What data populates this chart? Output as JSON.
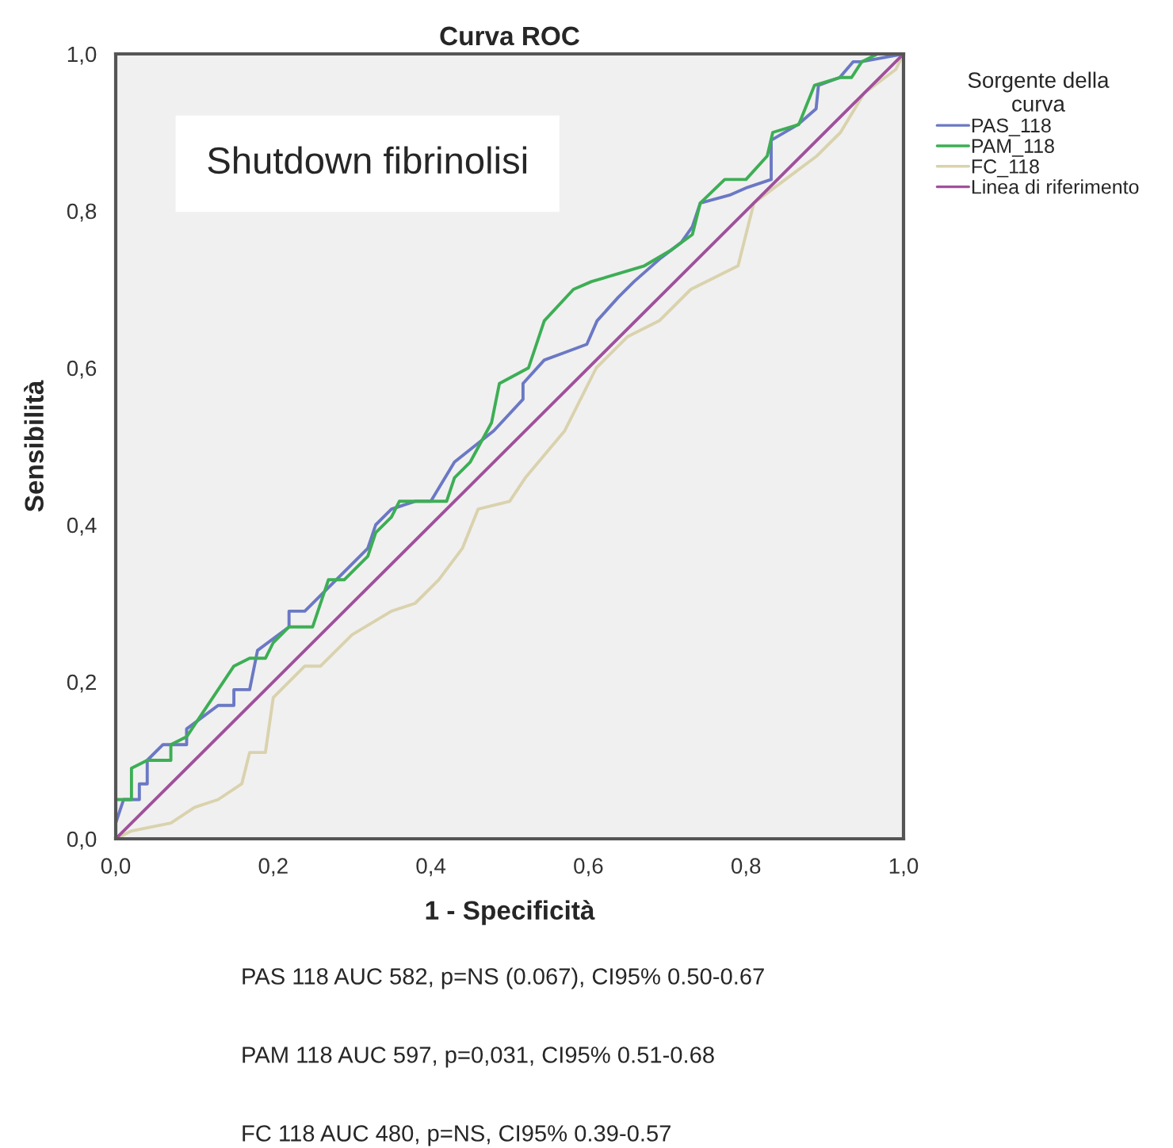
{
  "chart_data": {
    "type": "line",
    "title": "Curva ROC",
    "xlabel": "1 - Specificità",
    "ylabel": "Sensibilità",
    "legend_title": "Sorgente della\ncurva",
    "legend": "right",
    "xlim": [
      0,
      1
    ],
    "ylim": [
      0,
      1
    ],
    "xticks": [
      {
        "value": 0,
        "label": "0,0"
      },
      {
        "value": 0.2,
        "label": "0,2"
      },
      {
        "value": 0.4,
        "label": "0,4"
      },
      {
        "value": 0.6,
        "label": "0,6"
      },
      {
        "value": 0.8,
        "label": "0,8"
      },
      {
        "value": 1,
        "label": "1,0"
      }
    ],
    "yticks": [
      {
        "value": 0,
        "label": "0,0"
      },
      {
        "value": 0.2,
        "label": "0,2"
      },
      {
        "value": 0.4,
        "label": "0,4"
      },
      {
        "value": 0.6,
        "label": "0,6"
      },
      {
        "value": 0.8,
        "label": "0,8"
      },
      {
        "value": 1,
        "label": "1,0"
      }
    ],
    "grid": false,
    "series": [
      {
        "name": "PAS_118",
        "color": "#6b78c4",
        "x": [
          0,
          0,
          0.01,
          0.03,
          0.03,
          0.04,
          0.04,
          0.06,
          0.09,
          0.09,
          0.13,
          0.15,
          0.15,
          0.17,
          0.18,
          0.22,
          0.22,
          0.24,
          0.27,
          0.32,
          0.33,
          0.35,
          0.38,
          0.4,
          0.43,
          0.48,
          0.517,
          0.517,
          0.544,
          0.571,
          0.598,
          0.611,
          0.638,
          0.658,
          0.692,
          0.718,
          0.732,
          0.742,
          0.779,
          0.802,
          0.832,
          0.832,
          0.866,
          0.889,
          0.892,
          0.919,
          0.936,
          0.946,
          1
        ],
        "values": [
          0,
          0.02,
          0.05,
          0.05,
          0.07,
          0.07,
          0.1,
          0.12,
          0.12,
          0.14,
          0.17,
          0.17,
          0.19,
          0.19,
          0.24,
          0.27,
          0.29,
          0.29,
          0.32,
          0.37,
          0.4,
          0.42,
          0.43,
          0.43,
          0.48,
          0.52,
          0.56,
          0.58,
          0.61,
          0.62,
          0.63,
          0.66,
          0.69,
          0.71,
          0.74,
          0.76,
          0.78,
          0.81,
          0.82,
          0.83,
          0.84,
          0.89,
          0.91,
          0.93,
          0.96,
          0.97,
          0.99,
          0.99,
          1
        ]
      },
      {
        "name": "PAM_118",
        "color": "#3dae55",
        "x": [
          0,
          0,
          0.02,
          0.02,
          0.04,
          0.07,
          0.07,
          0.09,
          0.11,
          0.13,
          0.15,
          0.17,
          0.19,
          0.2,
          0.22,
          0.25,
          0.27,
          0.29,
          0.32,
          0.33,
          0.35,
          0.36,
          0.42,
          0.43,
          0.45,
          0.477,
          0.487,
          0.524,
          0.544,
          0.581,
          0.604,
          0.638,
          0.671,
          0.705,
          0.732,
          0.742,
          0.773,
          0.8,
          0.827,
          0.834,
          0.867,
          0.887,
          0.92,
          0.934,
          0.947,
          0.967,
          1
        ],
        "values": [
          0,
          0.05,
          0.05,
          0.09,
          0.1,
          0.1,
          0.12,
          0.13,
          0.16,
          0.19,
          0.22,
          0.23,
          0.23,
          0.25,
          0.27,
          0.27,
          0.33,
          0.33,
          0.36,
          0.39,
          0.41,
          0.43,
          0.43,
          0.46,
          0.48,
          0.53,
          0.58,
          0.6,
          0.66,
          0.7,
          0.71,
          0.72,
          0.73,
          0.75,
          0.77,
          0.81,
          0.84,
          0.84,
          0.87,
          0.9,
          0.91,
          0.96,
          0.97,
          0.97,
          0.99,
          1,
          1
        ]
      },
      {
        "name": "FC_118",
        "color": "#d9d2ad",
        "x": [
          0,
          0.02,
          0.07,
          0.1,
          0.13,
          0.16,
          0.17,
          0.19,
          0.2,
          0.24,
          0.26,
          0.3,
          0.35,
          0.38,
          0.41,
          0.44,
          0.46,
          0.5,
          0.52,
          0.57,
          0.59,
          0.61,
          0.65,
          0.69,
          0.73,
          0.79,
          0.81,
          0.85,
          0.89,
          0.92,
          0.95,
          0.99,
          1
        ],
        "values": [
          0,
          0.01,
          0.02,
          0.04,
          0.05,
          0.07,
          0.11,
          0.11,
          0.18,
          0.22,
          0.22,
          0.26,
          0.29,
          0.3,
          0.33,
          0.37,
          0.42,
          0.43,
          0.46,
          0.52,
          0.56,
          0.6,
          0.64,
          0.66,
          0.7,
          0.73,
          0.81,
          0.84,
          0.87,
          0.9,
          0.95,
          0.98,
          1
        ]
      },
      {
        "name": "Linea di riferimento",
        "color": "#a0509c",
        "x": [
          0,
          1
        ],
        "values": [
          0,
          1
        ]
      }
    ],
    "annotations": [
      "Shutdown fibrinolisi",
      "PAS 118 AUC 582, p=NS (0.067), CI95% 0.50-0.67",
      "PAM 118 AUC 597, p=0,031, CI95% 0.51-0.68",
      "FC 118 AUC 480, p=NS, CI95% 0.39-0.57"
    ]
  }
}
